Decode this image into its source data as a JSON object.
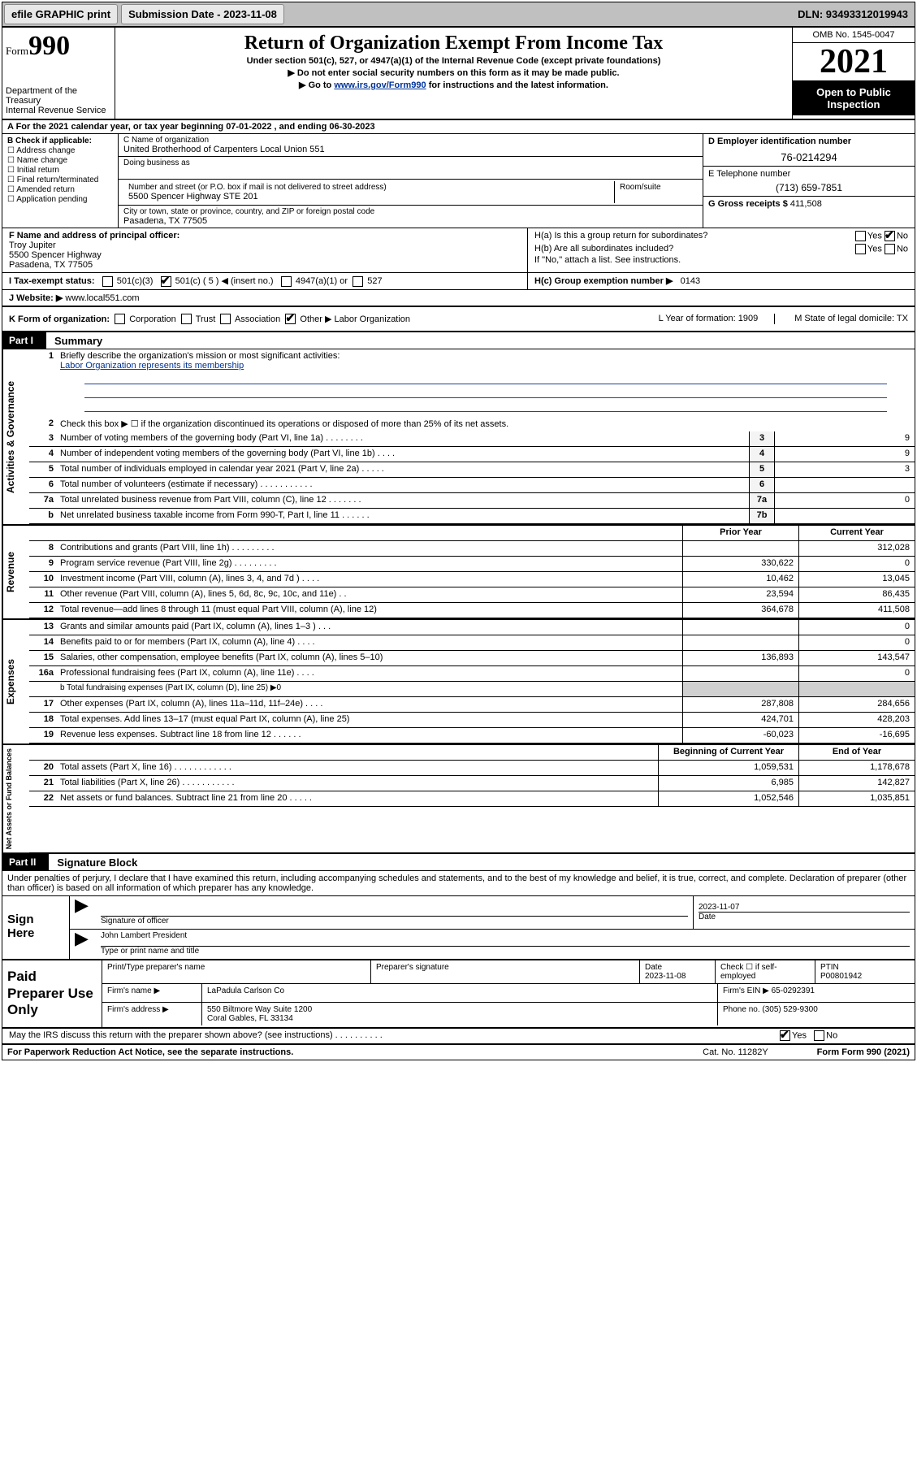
{
  "topbar": {
    "efile": "efile GRAPHIC print",
    "submission_label": "Submission Date - 2023-11-08",
    "dln": "DLN: 93493312019943"
  },
  "header": {
    "form_word": "Form",
    "form_num": "990",
    "title": "Return of Organization Exempt From Income Tax",
    "sub1": "Under section 501(c), 527, or 4947(a)(1) of the Internal Revenue Code (except private foundations)",
    "sub2": "▶ Do not enter social security numbers on this form as it may be made public.",
    "sub3a": "▶ Go to ",
    "sub3link": "www.irs.gov/Form990",
    "sub3b": " for instructions and the latest information.",
    "dept": "Department of the Treasury",
    "irs": "Internal Revenue Service",
    "omb": "OMB No. 1545-0047",
    "year": "2021",
    "open": "Open to Public Inspection"
  },
  "rowA": "A For the 2021 calendar year, or tax year beginning 07-01-2022   , and ending 06-30-2023",
  "boxB": {
    "title": "B Check if applicable:",
    "opts": [
      "☐ Address change",
      "☐ Name change",
      "☐ Initial return",
      "☐ Final return/terminated",
      "☐ Amended return",
      "☐ Application pending"
    ]
  },
  "boxC": {
    "name_lbl": "C Name of organization",
    "name": "United Brotherhood of Carpenters Local Union 551",
    "dba_lbl": "Doing business as",
    "street_lbl": "Number and street (or P.O. box if mail is not delivered to street address)",
    "room_lbl": "Room/suite",
    "street": "5500 Spencer Highway STE 201",
    "city_lbl": "City or town, state or province, country, and ZIP or foreign postal code",
    "city": "Pasadena, TX  77505"
  },
  "boxD": {
    "lbl": "D Employer identification number",
    "val": "76-0214294"
  },
  "boxE": {
    "lbl": "E Telephone number",
    "val": "(713) 659-7851"
  },
  "boxG": {
    "lbl": "G Gross receipts $",
    "val": "411,508"
  },
  "boxF": {
    "lbl": "F Name and address of principal officer:",
    "name": "Troy Jupiter",
    "addr1": "5500 Spencer Highway",
    "addr2": "Pasadena, TX  77505"
  },
  "boxH": {
    "a": "H(a)  Is this a group return for subordinates?",
    "a_yes": "Yes",
    "a_no": "No",
    "b": "H(b)  Are all subordinates included?",
    "b_yes": "Yes",
    "b_no": "No",
    "b_note": "If \"No,\" attach a list. See instructions.",
    "c": "H(c)  Group exemption number ▶",
    "c_val": "0143"
  },
  "rowI": {
    "lbl": "I   Tax-exempt status:",
    "opt1": "501(c)(3)",
    "opt2": "501(c) ( 5 ) ◀ (insert no.)",
    "opt3": "4947(a)(1) or",
    "opt4": "527"
  },
  "rowJ": {
    "lbl": "J   Website: ▶",
    "val": "www.local551.com"
  },
  "rowK": {
    "lbl": "K Form of organization:",
    "opts": [
      "Corporation",
      "Trust",
      "Association",
      "Other ▶"
    ],
    "other_val": "Labor Organization",
    "L": "L Year of formation: 1909",
    "M": "M State of legal domicile: TX"
  },
  "part1": {
    "label": "Part I",
    "title": "Summary",
    "tab_ag": "Activities & Governance",
    "tab_rev": "Revenue",
    "tab_exp": "Expenses",
    "tab_net": "Net Assets or Fund Balances",
    "line1": "Briefly describe the organization's mission or most significant activities:",
    "line1val": "Labor Organization represents its membership",
    "line2": "Check this box ▶ ☐  if the organization discontinued its operations or disposed of more than 25% of its net assets.",
    "lines_simple": [
      {
        "n": "3",
        "d": "Number of voting members of the governing body (Part VI, line 1a)  .    .    .    .    .    .    .    .",
        "b": "3",
        "v": "9"
      },
      {
        "n": "4",
        "d": "Number of independent voting members of the governing body (Part VI, line 1b)   .    .    .    .",
        "b": "4",
        "v": "9"
      },
      {
        "n": "5",
        "d": "Total number of individuals employed in calendar year 2021 (Part V, line 2a)   .    .    .    .    .",
        "b": "5",
        "v": "3"
      },
      {
        "n": "6",
        "d": "Total number of volunteers (estimate if necessary)   .    .    .    .    .    .    .    .    .    .    .",
        "b": "6",
        "v": ""
      },
      {
        "n": "7a",
        "d": "Total unrelated business revenue from Part VIII, column (C), line 12   .    .    .    .    .    .    .",
        "b": "7a",
        "v": "0"
      },
      {
        "n": "b",
        "d": "Net unrelated business taxable income from Form 990-T, Part I, line 11   .    .    .    .    .    .",
        "b": "7b",
        "v": ""
      }
    ],
    "col_hdr_prior": "Prior Year",
    "col_hdr_curr": "Current Year",
    "rev": [
      {
        "n": "8",
        "d": "Contributions and grants (Part VIII, line 1h)   .    .    .    .    .    .    .    .    .",
        "p": "",
        "c": "312,028"
      },
      {
        "n": "9",
        "d": "Program service revenue (Part VIII, line 2g)   .    .    .    .    .    .    .    .    .",
        "p": "330,622",
        "c": "0"
      },
      {
        "n": "10",
        "d": "Investment income (Part VIII, column (A), lines 3, 4, and 7d )   .    .    .    .",
        "p": "10,462",
        "c": "13,045"
      },
      {
        "n": "11",
        "d": "Other revenue (Part VIII, column (A), lines 5, 6d, 8c, 9c, 10c, and 11e)   .    .",
        "p": "23,594",
        "c": "86,435"
      },
      {
        "n": "12",
        "d": "Total revenue—add lines 8 through 11 (must equal Part VIII, column (A), line 12)",
        "p": "364,678",
        "c": "411,508"
      }
    ],
    "exp": [
      {
        "n": "13",
        "d": "Grants and similar amounts paid (Part IX, column (A), lines 1–3 )   .    .    .",
        "p": "",
        "c": "0"
      },
      {
        "n": "14",
        "d": "Benefits paid to or for members (Part IX, column (A), line 4)   .    .    .    .",
        "p": "",
        "c": "0"
      },
      {
        "n": "15",
        "d": "Salaries, other compensation, employee benefits (Part IX, column (A), lines 5–10)",
        "p": "136,893",
        "c": "143,547"
      },
      {
        "n": "16a",
        "d": "Professional fundraising fees (Part IX, column (A), line 11e)   .    .    .    .",
        "p": "",
        "c": "0"
      }
    ],
    "line16b": "b   Total fundraising expenses (Part IX, column (D), line 25) ▶0",
    "exp2": [
      {
        "n": "17",
        "d": "Other expenses (Part IX, column (A), lines 11a–11d, 11f–24e)   .    .    .    .",
        "p": "287,808",
        "c": "284,656"
      },
      {
        "n": "18",
        "d": "Total expenses. Add lines 13–17 (must equal Part IX, column (A), line 25)",
        "p": "424,701",
        "c": "428,203"
      },
      {
        "n": "19",
        "d": "Revenue less expenses. Subtract line 18 from line 12   .    .    .    .    .    .",
        "p": "-60,023",
        "c": "-16,695"
      }
    ],
    "net_hdr_b": "Beginning of Current Year",
    "net_hdr_e": "End of Year",
    "net": [
      {
        "n": "20",
        "d": "Total assets (Part X, line 16)   .    .    .    .    .    .    .    .    .    .    .    .",
        "p": "1,059,531",
        "c": "1,178,678"
      },
      {
        "n": "21",
        "d": "Total liabilities (Part X, line 26)   .    .    .    .    .    .    .    .    .    .    .",
        "p": "6,985",
        "c": "142,827"
      },
      {
        "n": "22",
        "d": "Net assets or fund balances. Subtract line 21 from line 20   .    .    .    .    .",
        "p": "1,052,546",
        "c": "1,035,851"
      }
    ]
  },
  "part2": {
    "label": "Part II",
    "title": "Signature Block",
    "decl": "Under penalties of perjury, I declare that I have examined this return, including accompanying schedules and statements, and to the best of my knowledge and belief, it is true, correct, and complete. Declaration of preparer (other than officer) is based on all information of which preparer has any knowledge."
  },
  "sign": {
    "here": "Sign Here",
    "sig_lbl": "Signature of officer",
    "date_lbl": "Date",
    "date_val": "2023-11-07",
    "name": "John Lambert  President",
    "name_lbl": "Type or print name and title"
  },
  "paid": {
    "lbl": "Paid Preparer Use Only",
    "h1": "Print/Type preparer's name",
    "h2": "Preparer's signature",
    "h3": "Date",
    "h3v": "2023-11-08",
    "h4": "Check ☐ if self-employed",
    "h5": "PTIN",
    "h5v": "P00801942",
    "firm_lbl": "Firm's name    ▶",
    "firm": "LaPadula Carlson Co",
    "ein_lbl": "Firm's EIN ▶",
    "ein": "65-0292391",
    "addr_lbl": "Firm's address ▶",
    "addr1": "550 Biltmore Way Suite 1200",
    "addr2": "Coral Gables, FL  33134",
    "phone_lbl": "Phone no.",
    "phone": "(305) 529-9300"
  },
  "footer": {
    "discuss": "May the IRS discuss this return with the preparer shown above? (see instructions)   .    .    .    .    .    .    .    .    .    .",
    "yes": "Yes",
    "no": "No",
    "pra": "For Paperwork Reduction Act Notice, see the separate instructions.",
    "cat": "Cat. No. 11282Y",
    "form": "Form 990 (2021)"
  }
}
